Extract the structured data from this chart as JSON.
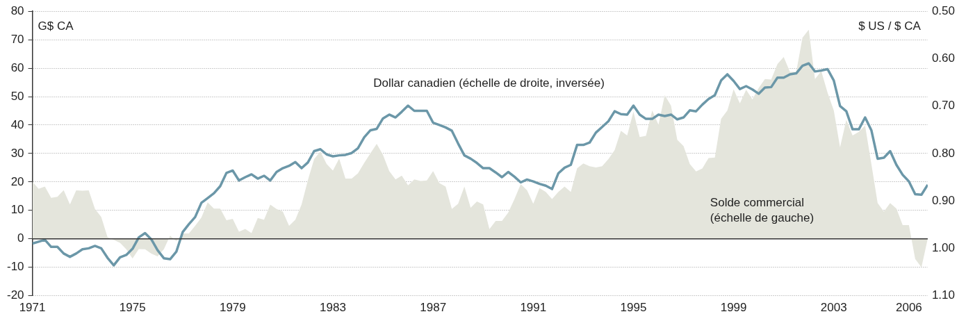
{
  "chart_data": {
    "type": "line",
    "ylabel": "G$ CA",
    "y2label": "$ US / $ CA",
    "x": [
      1971,
      1971.25,
      1971.5,
      1971.75,
      1972,
      1972.25,
      1972.5,
      1972.75,
      1973,
      1973.25,
      1973.5,
      1973.75,
      1974,
      1974.25,
      1974.5,
      1974.75,
      1975,
      1975.25,
      1975.5,
      1975.75,
      1976,
      1976.25,
      1976.5,
      1976.75,
      1977,
      1977.25,
      1977.5,
      1977.75,
      1978,
      1978.25,
      1978.5,
      1978.75,
      1979,
      1979.25,
      1979.5,
      1979.75,
      1980,
      1980.25,
      1980.5,
      1980.75,
      1981,
      1981.25,
      1981.5,
      1981.75,
      1982,
      1982.25,
      1982.5,
      1982.75,
      1983,
      1983.25,
      1983.5,
      1983.75,
      1984,
      1984.25,
      1984.5,
      1984.75,
      1985,
      1985.25,
      1985.5,
      1985.75,
      1986,
      1986.25,
      1986.5,
      1986.75,
      1987,
      1987.25,
      1987.5,
      1987.75,
      1988,
      1988.25,
      1988.5,
      1988.75,
      1989,
      1989.25,
      1989.5,
      1989.75,
      1990,
      1990.25,
      1990.5,
      1990.75,
      1991,
      1991.25,
      1991.5,
      1991.75,
      1992,
      1992.25,
      1992.5,
      1992.75,
      1993,
      1993.25,
      1993.5,
      1993.75,
      1994,
      1994.25,
      1994.5,
      1994.75,
      1995,
      1995.25,
      1995.5,
      1995.75,
      1996,
      1996.25,
      1996.5,
      1996.75,
      1997,
      1997.25,
      1997.5,
      1997.75,
      1998,
      1998.25,
      1998.5,
      1998.75,
      1999,
      1999.25,
      1999.5,
      1999.75,
      2000,
      2000.25,
      2000.5,
      2000.75,
      2001,
      2001.25,
      2001.5,
      2001.75,
      2002,
      2002.25,
      2002.5,
      2002.75,
      2003,
      2003.25,
      2003.5,
      2003.75,
      2004,
      2004.25,
      2004.5,
      2004.75,
      2005,
      2005.25,
      2005.5,
      2005.75,
      2006,
      2006.25,
      2006.5,
      2006.75
    ],
    "xlim": [
      1971,
      2006.75
    ],
    "xticks": [
      1971,
      1975,
      1979,
      1983,
      1987,
      1991,
      1995,
      1999,
      2003,
      2006
    ],
    "ylim": [
      -20,
      80
    ],
    "yticks": [
      -20,
      -10,
      0,
      10,
      20,
      30,
      40,
      50,
      60,
      70,
      80
    ],
    "y2lim": [
      1.1,
      0.5
    ],
    "y2ticks": [
      {
        "value": 0.5,
        "label": "0.50"
      },
      {
        "value": 0.6,
        "label": "0.60"
      },
      {
        "value": 0.7,
        "label": "0.70"
      },
      {
        "value": 0.8,
        "label": "0.80"
      },
      {
        "value": 0.9,
        "label": "0.90"
      },
      {
        "value": 1.0,
        "label": "1.00"
      },
      {
        "value": 1.1,
        "label": "1.10"
      }
    ],
    "grid": "y",
    "series": [
      {
        "name": "Solde commercial (échelle de gauche)",
        "type": "area",
        "color": "#e4e5dc",
        "values": [
          20.1,
          17.6,
          18.4,
          14.4,
          14.8,
          17.1,
          12.1,
          17.0,
          16.9,
          17.0,
          10.5,
          7.7,
          0.6,
          -0.4,
          -1.4,
          -3.7,
          -6.9,
          -3.6,
          -3.7,
          -5.2,
          -6.2,
          -3.7,
          1.1,
          -0.8,
          1.9,
          1.9,
          4.6,
          7.5,
          12.8,
          10.6,
          10.6,
          6.5,
          7.0,
          2.5,
          3.5,
          2.0,
          7.3,
          6.7,
          12.0,
          10.5,
          9.6,
          4.6,
          6.7,
          12.1,
          20.6,
          28.0,
          30.7,
          26.3,
          24.0,
          28.2,
          21.2,
          21.2,
          23.0,
          26.7,
          30.1,
          33.4,
          29.5,
          23.8,
          20.9,
          22.2,
          18.8,
          20.9,
          20.3,
          20.5,
          23.8,
          19.6,
          18.4,
          10.5,
          12.3,
          18.4,
          10.9,
          13.1,
          12.1,
          3.4,
          6.3,
          6.3,
          9.2,
          14.0,
          19.2,
          17.1,
          12.3,
          17.8,
          16.5,
          14.0,
          16.5,
          18.4,
          16.5,
          24.8,
          26.5,
          25.5,
          25.1,
          25.5,
          28.0,
          31.2,
          38.0,
          36.3,
          44.7,
          35.8,
          36.2,
          45.1,
          40.1,
          50.5,
          46.8,
          34.8,
          32.6,
          26.3,
          23.7,
          24.7,
          28.4,
          28.6,
          42.2,
          45.1,
          52.6,
          47.6,
          52.4,
          49.0,
          53.0,
          56.2,
          56.0,
          61.4,
          63.9,
          58.7,
          58.7,
          70.7,
          73.5,
          56.2,
          59.0,
          51.4,
          45.1,
          32.2,
          41.8,
          36.3,
          37.6,
          39.8,
          26.3,
          12.6,
          9.6,
          12.6,
          10.6,
          4.8,
          4.8,
          -7.1,
          -10.0,
          0.0
        ]
      },
      {
        "name": "Dollar canadien (échelle de droite, inversée)",
        "type": "line",
        "axis": "y2",
        "color": "#6b97a8",
        "values": [
          0.99,
          0.986,
          0.982,
          0.997,
          0.997,
          1.011,
          1.018,
          1.011,
          1.002,
          1.0,
          0.995,
          1.0,
          1.02,
          1.036,
          1.019,
          1.014,
          1.001,
          0.977,
          0.968,
          0.981,
          1.004,
          1.021,
          1.023,
          1.007,
          0.966,
          0.949,
          0.934,
          0.904,
          0.894,
          0.884,
          0.869,
          0.841,
          0.836,
          0.857,
          0.85,
          0.844,
          0.853,
          0.847,
          0.857,
          0.839,
          0.831,
          0.826,
          0.818,
          0.831,
          0.819,
          0.795,
          0.791,
          0.802,
          0.806,
          0.804,
          0.803,
          0.799,
          0.789,
          0.766,
          0.751,
          0.748,
          0.726,
          0.718,
          0.724,
          0.712,
          0.699,
          0.71,
          0.71,
          0.71,
          0.735,
          0.74,
          0.745,
          0.752,
          0.779,
          0.804,
          0.811,
          0.82,
          0.831,
          0.831,
          0.84,
          0.85,
          0.839,
          0.849,
          0.861,
          0.855,
          0.859,
          0.864,
          0.868,
          0.875,
          0.842,
          0.83,
          0.824,
          0.782,
          0.782,
          0.777,
          0.756,
          0.744,
          0.732,
          0.711,
          0.717,
          0.718,
          0.699,
          0.718,
          0.727,
          0.727,
          0.718,
          0.721,
          0.718,
          0.728,
          0.724,
          0.709,
          0.711,
          0.697,
          0.685,
          0.677,
          0.646,
          0.633,
          0.647,
          0.664,
          0.658,
          0.665,
          0.674,
          0.661,
          0.66,
          0.64,
          0.64,
          0.633,
          0.631,
          0.615,
          0.61,
          0.627,
          0.625,
          0.622,
          0.646,
          0.7,
          0.711,
          0.749,
          0.749,
          0.724,
          0.751,
          0.811,
          0.809,
          0.795,
          0.824,
          0.845,
          0.859,
          0.886,
          0.887,
          0.866
        ]
      }
    ]
  }
}
